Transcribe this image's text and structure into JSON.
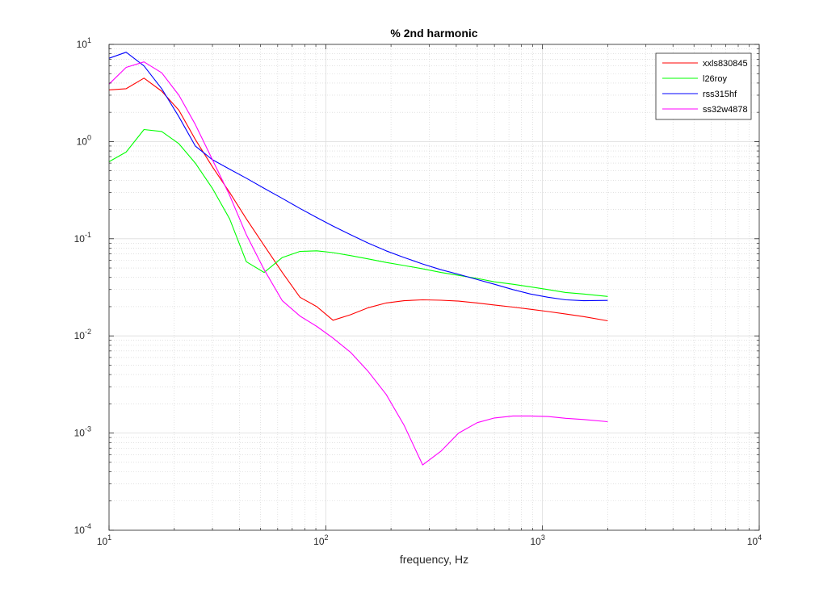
{
  "chart_data": {
    "type": "line",
    "title": "% 2nd harmonic",
    "xlabel": "frequency, Hz",
    "ylabel": "",
    "xscale": "log",
    "yscale": "log",
    "xlim": [
      10,
      10000
    ],
    "ylim": [
      0.0001,
      10
    ],
    "grid": true,
    "minor_grid": true,
    "legend_position": "top-right",
    "x_ticks": [
      {
        "value": 10,
        "base": "10",
        "exp": "1"
      },
      {
        "value": 100,
        "base": "10",
        "exp": "2"
      },
      {
        "value": 1000,
        "base": "10",
        "exp": "3"
      },
      {
        "value": 10000,
        "base": "10",
        "exp": "4"
      }
    ],
    "y_ticks": [
      {
        "value": 0.0001,
        "base": "10",
        "exp": "-4"
      },
      {
        "value": 0.001,
        "base": "10",
        "exp": "-3"
      },
      {
        "value": 0.01,
        "base": "10",
        "exp": "-2"
      },
      {
        "value": 0.1,
        "base": "10",
        "exp": "-1"
      },
      {
        "value": 1,
        "base": "10",
        "exp": "0"
      },
      {
        "value": 10,
        "base": "10",
        "exp": "1"
      }
    ],
    "series": [
      {
        "name": "xxls830845",
        "color": "#ff0000",
        "x": [
          10,
          12,
          14.5,
          17.5,
          21,
          25,
          30,
          36,
          43,
          52,
          63,
          76,
          91,
          108,
          130,
          157,
          190,
          230,
          280,
          340,
          410,
          500,
          600,
          730,
          880,
          1060,
          1280,
          1550,
          2000
        ],
        "y": [
          3.4,
          3.5,
          4.5,
          3.3,
          2.1,
          1.05,
          0.55,
          0.3,
          0.16,
          0.085,
          0.045,
          0.025,
          0.02,
          0.0145,
          0.0165,
          0.0195,
          0.0218,
          0.023,
          0.0235,
          0.0233,
          0.0228,
          0.0218,
          0.0208,
          0.0198,
          0.0188,
          0.0178,
          0.0168,
          0.0158,
          0.0143
        ]
      },
      {
        "name": "l26roy",
        "color": "#00ff00",
        "x": [
          10,
          12,
          14.5,
          17.5,
          21,
          25,
          30,
          36,
          43,
          52,
          63,
          76,
          91,
          108,
          130,
          157,
          190,
          230,
          280,
          340,
          410,
          500,
          600,
          730,
          880,
          1060,
          1280,
          1550,
          2000
        ],
        "y": [
          0.62,
          0.78,
          1.33,
          1.27,
          0.95,
          0.6,
          0.33,
          0.16,
          0.058,
          0.045,
          0.064,
          0.074,
          0.075,
          0.072,
          0.067,
          0.062,
          0.057,
          0.053,
          0.049,
          0.045,
          0.042,
          0.039,
          0.036,
          0.034,
          0.032,
          0.03,
          0.028,
          0.027,
          0.0255
        ]
      },
      {
        "name": "rss315hf",
        "color": "#0000ff",
        "x": [
          10,
          12,
          14.5,
          17.5,
          21,
          25,
          30,
          36,
          43,
          52,
          63,
          76,
          91,
          108,
          130,
          157,
          190,
          230,
          280,
          340,
          410,
          500,
          600,
          730,
          880,
          1060,
          1280,
          1550,
          2000
        ],
        "y": [
          7.2,
          8.3,
          6.0,
          3.5,
          1.8,
          0.9,
          0.65,
          0.52,
          0.42,
          0.33,
          0.26,
          0.205,
          0.165,
          0.135,
          0.11,
          0.09,
          0.075,
          0.064,
          0.055,
          0.048,
          0.043,
          0.038,
          0.034,
          0.03,
          0.027,
          0.025,
          0.0235,
          0.023,
          0.0232
        ]
      },
      {
        "name": "ss32w4878",
        "color": "#ff00ff",
        "x": [
          10,
          12,
          14.5,
          17.5,
          21,
          25,
          30,
          36,
          43,
          52,
          63,
          76,
          91,
          108,
          130,
          157,
          190,
          230,
          280,
          340,
          410,
          500,
          600,
          730,
          880,
          1060,
          1280,
          1550,
          2000
        ],
        "y": [
          3.9,
          5.8,
          6.6,
          5.1,
          3.0,
          1.5,
          0.65,
          0.28,
          0.11,
          0.048,
          0.023,
          0.016,
          0.0125,
          0.0095,
          0.0068,
          0.0043,
          0.0025,
          0.0012,
          0.00047,
          0.00065,
          0.001,
          0.00128,
          0.00143,
          0.0015,
          0.0015,
          0.00148,
          0.00142,
          0.00138,
          0.00131
        ]
      }
    ]
  }
}
